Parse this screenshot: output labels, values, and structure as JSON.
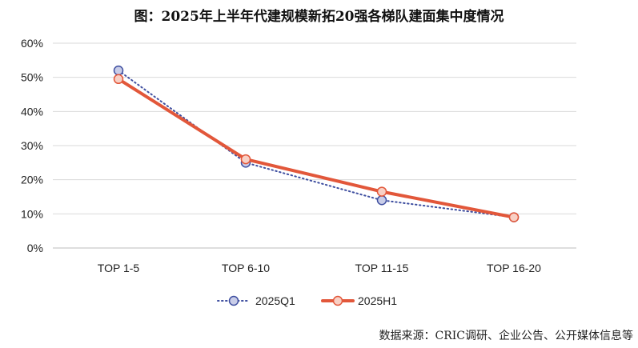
{
  "chart_data": {
    "type": "line",
    "title": "图：2025年上半年代建规模新拓20强各梯队建面集中度情况",
    "categories": [
      "TOP 1-5",
      "TOP 6-10",
      "TOP 11-15",
      "TOP 16-20"
    ],
    "series": [
      {
        "name": "2025Q1",
        "values": [
          52,
          25,
          14,
          9
        ],
        "color": "#3f4fa0",
        "marker_fill": "#c9cde8",
        "style": "dotted"
      },
      {
        "name": "2025H1",
        "values": [
          49.5,
          26,
          16.5,
          9
        ],
        "color": "#e2573a",
        "marker_fill": "#f8d0c5",
        "style": "solid"
      }
    ],
    "yticks": [
      "0%",
      "10%",
      "20%",
      "30%",
      "40%",
      "50%",
      "60%"
    ],
    "ylim": [
      0,
      60
    ],
    "grid": true,
    "legend_position": "bottom"
  },
  "source": "数据来源：CRIC调研、企业公告、公开媒体信息等"
}
